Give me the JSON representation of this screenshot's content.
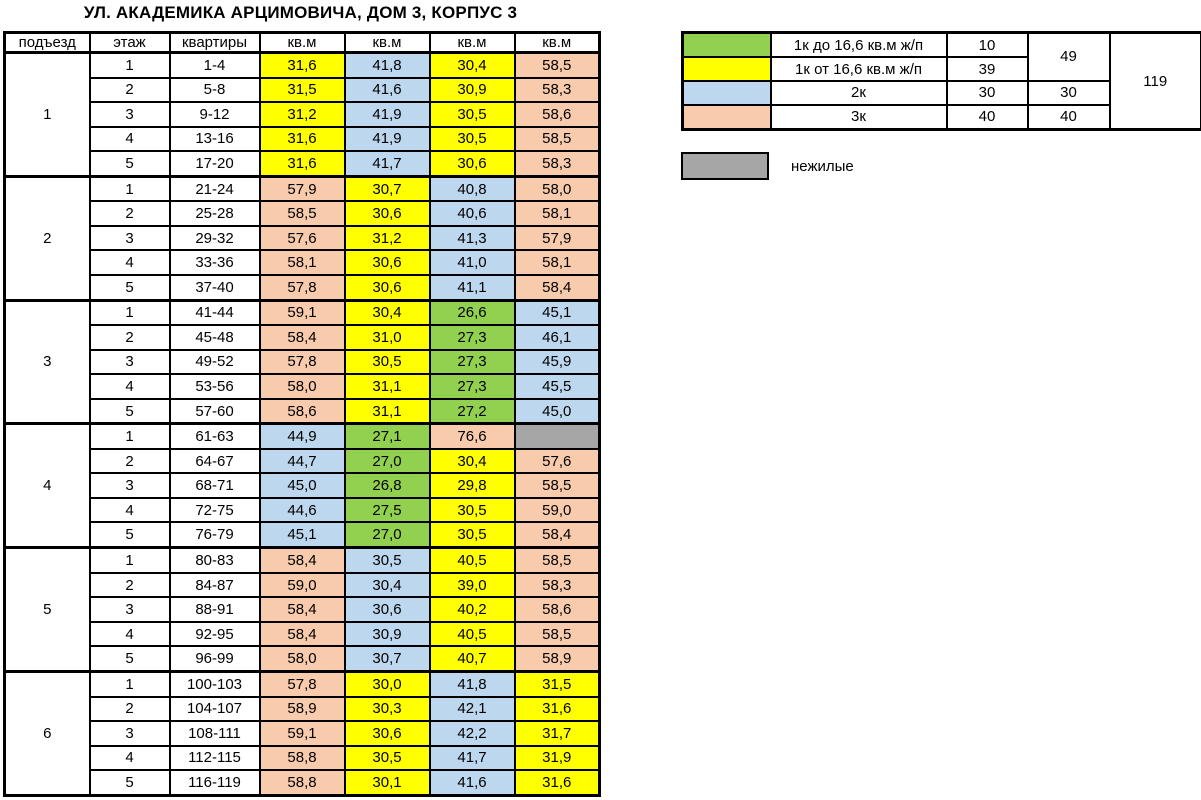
{
  "title": "УЛ. АКАДЕМИКА АРЦИМОВИЧА, ДОМ 3, КОРПУС 3",
  "colors": {
    "yellow": "#FFFF00",
    "green": "#92D050",
    "blue": "#BDD7EE",
    "peach": "#F8CBAD",
    "gray": "#A6A6A6",
    "white": "#FFFFFF"
  },
  "table": {
    "headers": [
      "подъезд",
      "этаж",
      "квартиры",
      "кв.м",
      "кв.м",
      "кв.м",
      "кв.м"
    ],
    "sections": [
      {
        "entrance": "1",
        "rows": [
          {
            "floor": "1",
            "apartments": "1-4",
            "areas": [
              {
                "v": "31,6",
                "c": "yellow"
              },
              {
                "v": "41,8",
                "c": "blue"
              },
              {
                "v": "30,4",
                "c": "yellow"
              },
              {
                "v": "58,5",
                "c": "peach"
              }
            ]
          },
          {
            "floor": "2",
            "apartments": "5-8",
            "areas": [
              {
                "v": "31,5",
                "c": "yellow"
              },
              {
                "v": "41,6",
                "c": "blue"
              },
              {
                "v": "30,9",
                "c": "yellow"
              },
              {
                "v": "58,3",
                "c": "peach"
              }
            ]
          },
          {
            "floor": "3",
            "apartments": "9-12",
            "areas": [
              {
                "v": "31,2",
                "c": "yellow"
              },
              {
                "v": "41,9",
                "c": "blue"
              },
              {
                "v": "30,5",
                "c": "yellow"
              },
              {
                "v": "58,6",
                "c": "peach"
              }
            ]
          },
          {
            "floor": "4",
            "apartments": "13-16",
            "areas": [
              {
                "v": "31,6",
                "c": "yellow"
              },
              {
                "v": "41,9",
                "c": "blue"
              },
              {
                "v": "30,5",
                "c": "yellow"
              },
              {
                "v": "58,5",
                "c": "peach"
              }
            ]
          },
          {
            "floor": "5",
            "apartments": "17-20",
            "areas": [
              {
                "v": "31,6",
                "c": "yellow"
              },
              {
                "v": "41,7",
                "c": "blue"
              },
              {
                "v": "30,6",
                "c": "yellow"
              },
              {
                "v": "58,3",
                "c": "peach"
              }
            ]
          }
        ]
      },
      {
        "entrance": "2",
        "rows": [
          {
            "floor": "1",
            "apartments": "21-24",
            "areas": [
              {
                "v": "57,9",
                "c": "peach"
              },
              {
                "v": "30,7",
                "c": "yellow"
              },
              {
                "v": "40,8",
                "c": "blue"
              },
              {
                "v": "58,0",
                "c": "peach"
              }
            ]
          },
          {
            "floor": "2",
            "apartments": "25-28",
            "areas": [
              {
                "v": "58,5",
                "c": "peach"
              },
              {
                "v": "30,6",
                "c": "yellow"
              },
              {
                "v": "40,6",
                "c": "blue"
              },
              {
                "v": "58,1",
                "c": "peach"
              }
            ]
          },
          {
            "floor": "3",
            "apartments": "29-32",
            "areas": [
              {
                "v": "57,6",
                "c": "peach"
              },
              {
                "v": "31,2",
                "c": "yellow"
              },
              {
                "v": "41,3",
                "c": "blue"
              },
              {
                "v": "57,9",
                "c": "peach"
              }
            ]
          },
          {
            "floor": "4",
            "apartments": "33-36",
            "areas": [
              {
                "v": "58,1",
                "c": "peach"
              },
              {
                "v": "30,6",
                "c": "yellow"
              },
              {
                "v": "41,0",
                "c": "blue"
              },
              {
                "v": "58,1",
                "c": "peach"
              }
            ]
          },
          {
            "floor": "5",
            "apartments": "37-40",
            "areas": [
              {
                "v": "57,8",
                "c": "peach"
              },
              {
                "v": "30,6",
                "c": "yellow"
              },
              {
                "v": "41,1",
                "c": "blue"
              },
              {
                "v": "58,4",
                "c": "peach"
              }
            ]
          }
        ]
      },
      {
        "entrance": "3",
        "rows": [
          {
            "floor": "1",
            "apartments": "41-44",
            "areas": [
              {
                "v": "59,1",
                "c": "peach"
              },
              {
                "v": "30,4",
                "c": "yellow"
              },
              {
                "v": "26,6",
                "c": "green"
              },
              {
                "v": "45,1",
                "c": "blue"
              }
            ]
          },
          {
            "floor": "2",
            "apartments": "45-48",
            "areas": [
              {
                "v": "58,4",
                "c": "peach"
              },
              {
                "v": "31,0",
                "c": "yellow"
              },
              {
                "v": "27,3",
                "c": "green"
              },
              {
                "v": "46,1",
                "c": "blue"
              }
            ]
          },
          {
            "floor": "3",
            "apartments": "49-52",
            "areas": [
              {
                "v": "57,8",
                "c": "peach"
              },
              {
                "v": "30,5",
                "c": "yellow"
              },
              {
                "v": "27,3",
                "c": "green"
              },
              {
                "v": "45,9",
                "c": "blue"
              }
            ]
          },
          {
            "floor": "4",
            "apartments": "53-56",
            "areas": [
              {
                "v": "58,0",
                "c": "peach"
              },
              {
                "v": "31,1",
                "c": "yellow"
              },
              {
                "v": "27,3",
                "c": "green"
              },
              {
                "v": "45,5",
                "c": "blue"
              }
            ]
          },
          {
            "floor": "5",
            "apartments": "57-60",
            "areas": [
              {
                "v": "58,6",
                "c": "peach"
              },
              {
                "v": "31,1",
                "c": "yellow"
              },
              {
                "v": "27,2",
                "c": "green"
              },
              {
                "v": "45,0",
                "c": "blue"
              }
            ]
          }
        ]
      },
      {
        "entrance": "4",
        "rows": [
          {
            "floor": "1",
            "apartments": "61-63",
            "areas": [
              {
                "v": "44,9",
                "c": "blue"
              },
              {
                "v": "27,1",
                "c": "green"
              },
              {
                "v": "76,6",
                "c": "peach"
              },
              {
                "v": "",
                "c": "gray"
              }
            ]
          },
          {
            "floor": "2",
            "apartments": "64-67",
            "areas": [
              {
                "v": "44,7",
                "c": "blue"
              },
              {
                "v": "27,0",
                "c": "green"
              },
              {
                "v": "30,4",
                "c": "yellow"
              },
              {
                "v": "57,6",
                "c": "peach"
              }
            ]
          },
          {
            "floor": "3",
            "apartments": "68-71",
            "areas": [
              {
                "v": "45,0",
                "c": "blue"
              },
              {
                "v": "26,8",
                "c": "green"
              },
              {
                "v": "29,8",
                "c": "yellow"
              },
              {
                "v": "58,5",
                "c": "peach"
              }
            ]
          },
          {
            "floor": "4",
            "apartments": "72-75",
            "areas": [
              {
                "v": "44,6",
                "c": "blue"
              },
              {
                "v": "27,5",
                "c": "green"
              },
              {
                "v": "30,5",
                "c": "yellow"
              },
              {
                "v": "59,0",
                "c": "peach"
              }
            ]
          },
          {
            "floor": "5",
            "apartments": "76-79",
            "areas": [
              {
                "v": "45,1",
                "c": "blue"
              },
              {
                "v": "27,0",
                "c": "green"
              },
              {
                "v": "30,5",
                "c": "yellow"
              },
              {
                "v": "58,4",
                "c": "peach"
              }
            ]
          }
        ]
      },
      {
        "entrance": "5",
        "rows": [
          {
            "floor": "1",
            "apartments": "80-83",
            "areas": [
              {
                "v": "58,4",
                "c": "peach"
              },
              {
                "v": "30,5",
                "c": "blue"
              },
              {
                "v": "40,5",
                "c": "yellow"
              },
              {
                "v": "58,5",
                "c": "peach"
              }
            ]
          },
          {
            "floor": "2",
            "apartments": "84-87",
            "areas": [
              {
                "v": "59,0",
                "c": "peach"
              },
              {
                "v": "30,4",
                "c": "blue"
              },
              {
                "v": "39,0",
                "c": "yellow"
              },
              {
                "v": "58,3",
                "c": "peach"
              }
            ]
          },
          {
            "floor": "3",
            "apartments": "88-91",
            "areas": [
              {
                "v": "58,4",
                "c": "peach"
              },
              {
                "v": "30,6",
                "c": "blue"
              },
              {
                "v": "40,2",
                "c": "yellow"
              },
              {
                "v": "58,6",
                "c": "peach"
              }
            ]
          },
          {
            "floor": "4",
            "apartments": "92-95",
            "areas": [
              {
                "v": "58,4",
                "c": "peach"
              },
              {
                "v": "30,9",
                "c": "blue"
              },
              {
                "v": "40,5",
                "c": "yellow"
              },
              {
                "v": "58,5",
                "c": "peach"
              }
            ]
          },
          {
            "floor": "5",
            "apartments": "96-99",
            "areas": [
              {
                "v": "58,0",
                "c": "peach"
              },
              {
                "v": "30,7",
                "c": "blue"
              },
              {
                "v": "40,7",
                "c": "yellow"
              },
              {
                "v": "58,9",
                "c": "peach"
              }
            ]
          }
        ]
      },
      {
        "entrance": "6",
        "rows": [
          {
            "floor": "1",
            "apartments": "100-103",
            "areas": [
              {
                "v": "57,8",
                "c": "peach"
              },
              {
                "v": "30,0",
                "c": "yellow"
              },
              {
                "v": "41,8",
                "c": "blue"
              },
              {
                "v": "31,5",
                "c": "yellow"
              }
            ]
          },
          {
            "floor": "2",
            "apartments": "104-107",
            "areas": [
              {
                "v": "58,9",
                "c": "peach"
              },
              {
                "v": "30,3",
                "c": "yellow"
              },
              {
                "v": "42,1",
                "c": "blue"
              },
              {
                "v": "31,6",
                "c": "yellow"
              }
            ]
          },
          {
            "floor": "3",
            "apartments": "108-111",
            "areas": [
              {
                "v": "59,1",
                "c": "peach"
              },
              {
                "v": "30,6",
                "c": "yellow"
              },
              {
                "v": "42,2",
                "c": "blue"
              },
              {
                "v": "31,7",
                "c": "yellow"
              }
            ]
          },
          {
            "floor": "4",
            "apartments": "112-115",
            "areas": [
              {
                "v": "58,8",
                "c": "peach"
              },
              {
                "v": "30,5",
                "c": "yellow"
              },
              {
                "v": "41,7",
                "c": "blue"
              },
              {
                "v": "31,9",
                "c": "yellow"
              }
            ]
          },
          {
            "floor": "5",
            "apartments": "116-119",
            "areas": [
              {
                "v": "58,8",
                "c": "peach"
              },
              {
                "v": "30,1",
                "c": "yellow"
              },
              {
                "v": "41,6",
                "c": "blue"
              },
              {
                "v": "31,6",
                "c": "yellow"
              }
            ]
          }
        ]
      }
    ]
  },
  "legend": {
    "rows": [
      {
        "color": "green",
        "label": "1к до 16,6 кв.м ж/п",
        "count": "10"
      },
      {
        "color": "yellow",
        "label": "1к от 16,6 кв.м ж/п",
        "count": "39"
      },
      {
        "color": "blue",
        "label": "2к",
        "count": "30"
      },
      {
        "color": "peach",
        "label": "3к",
        "count": "40"
      }
    ],
    "subtotal_1k": "49",
    "subtotal_2k": "30",
    "subtotal_3k": "40",
    "total": "119",
    "nonresidential_label": "нежилые"
  }
}
